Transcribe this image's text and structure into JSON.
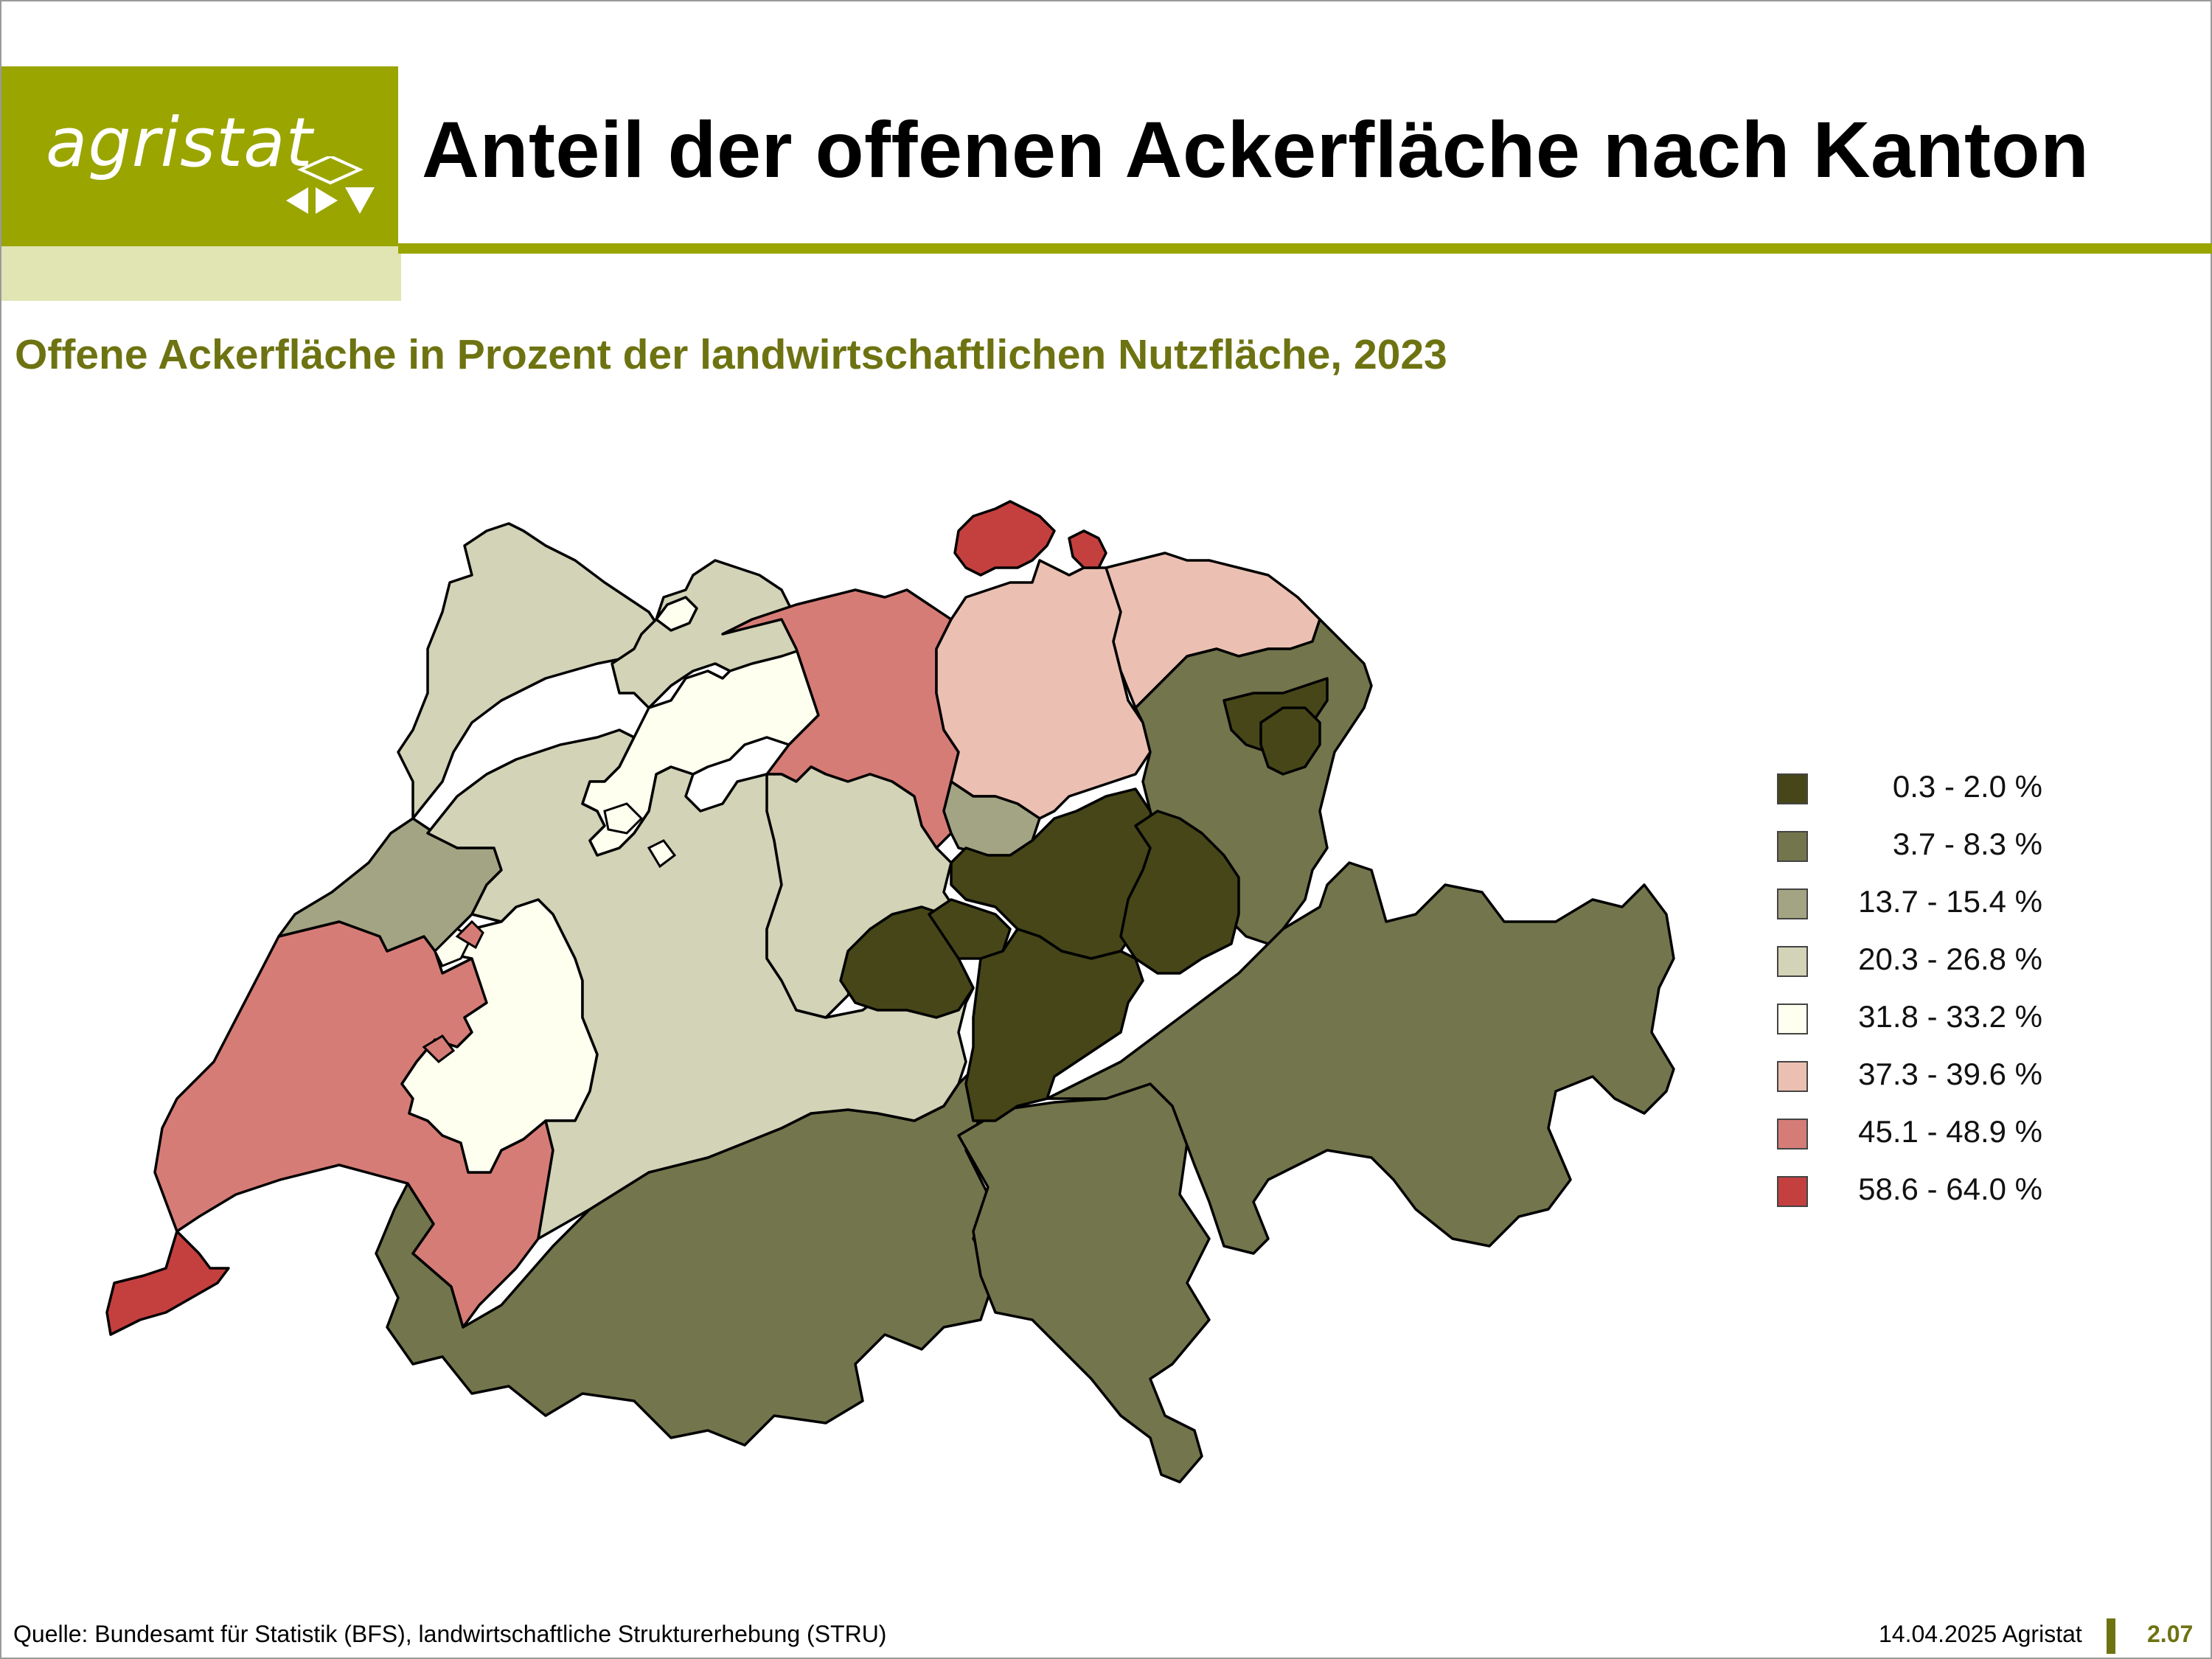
{
  "header": {
    "logo_text": "agristat",
    "title": "Anteil der offenen Ackerfläche nach Kanton"
  },
  "subtitle": "Offene Ackerfläche in Prozent der landwirtschaftlichen Nutzfläche, 2023",
  "legend": [
    {
      "label": "0.3 - 2.0 %",
      "color": "#464618"
    },
    {
      "label": "3.7 - 8.3 %",
      "color": "#73754c"
    },
    {
      "label": "13.7 - 15.4 %",
      "color": "#a3a483"
    },
    {
      "label": "20.3 - 26.8 %",
      "color": "#d2d3b7"
    },
    {
      "label": "31.8 - 33.2 %",
      "color": "#fffff0"
    },
    {
      "label": "37.3 - 39.6 %",
      "color": "#ebc0b2"
    },
    {
      "label": "45.1 - 48.9 %",
      "color": "#d67c77"
    },
    {
      "label": "58.6 - 64.0 %",
      "color": "#c4403f"
    }
  ],
  "footer": {
    "source": "Quelle: Bundesamt für Statistik (BFS), landwirtschaftliche Strukturerhebung (STRU)",
    "date": "14.04.2025 Agristat",
    "page_number": "2.07"
  }
}
